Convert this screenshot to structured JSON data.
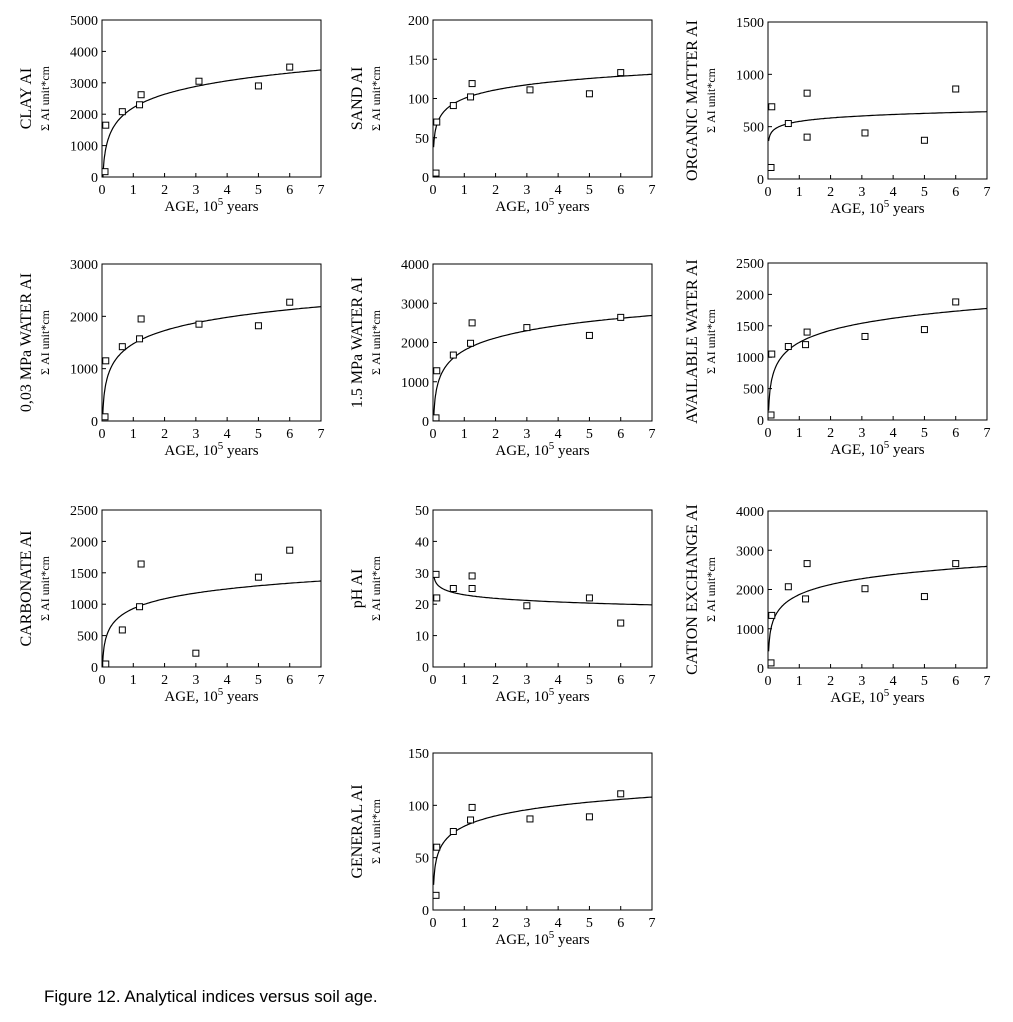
{
  "caption": "Figure 12. Analytical indices versus soil age.",
  "chart_data": [
    {
      "type": "scatter",
      "title": "CLAY AI",
      "ylabel": "Σ AI unit*cm",
      "xlabel": "AGE, 10^5 years",
      "xlim": [
        0,
        7
      ],
      "ylim": [
        0,
        5000
      ],
      "xticks": [
        0,
        1,
        2,
        3,
        4,
        5,
        6,
        7
      ],
      "yticks": [
        0,
        1000,
        2000,
        3000,
        4000,
        5000
      ],
      "points": [
        [
          0,
          170
        ],
        [
          0.12,
          1650
        ],
        [
          0.65,
          2080
        ],
        [
          1.2,
          2300
        ],
        [
          1.25,
          2620
        ],
        [
          3.1,
          3050
        ],
        [
          5,
          2900
        ],
        [
          6,
          3500
        ]
      ],
      "fit": {
        "a": 2207,
        "b": 1420,
        "c": 0.5
      }
    },
    {
      "type": "scatter",
      "title": "SAND AI",
      "ylabel": "Σ AI unit*cm",
      "xlabel": "AGE, 10^5 years",
      "xlim": [
        0,
        7
      ],
      "ylim": [
        0,
        200
      ],
      "xticks": [
        0,
        1,
        2,
        3,
        4,
        5,
        6,
        7
      ],
      "yticks": [
        0,
        50,
        100,
        150,
        200
      ],
      "points": [
        [
          0,
          5
        ],
        [
          0.12,
          70
        ],
        [
          0.65,
          91
        ],
        [
          1.2,
          102
        ],
        [
          1.25,
          119
        ],
        [
          3.1,
          111
        ],
        [
          5,
          106
        ],
        [
          6,
          133
        ]
      ],
      "fit": {
        "a": 100,
        "b": 36.5,
        "c": 0.5
      }
    },
    {
      "type": "scatter",
      "title": "ORGANIC MATTER AI",
      "ylabel": "Σ AI unit*cm",
      "xlabel": "AGE, 10^5 years",
      "xlim": [
        0,
        7
      ],
      "ylim": [
        0,
        1500
      ],
      "xticks": [
        0,
        1,
        2,
        3,
        4,
        5,
        6,
        7
      ],
      "yticks": [
        0,
        500,
        1000,
        1500
      ],
      "points": [
        [
          0,
          110
        ],
        [
          0.12,
          690
        ],
        [
          0.65,
          530
        ],
        [
          1.25,
          820
        ],
        [
          1.25,
          400
        ],
        [
          3.1,
          440
        ],
        [
          5,
          370
        ],
        [
          6,
          860
        ]
      ],
      "fit": {
        "a": 550,
        "b": 110,
        "c": 0.5
      }
    },
    {
      "type": "scatter",
      "title": "0,03 MPa WATER AI",
      "ylabel": "Σ AI unit*cm",
      "xlabel": "AGE, 10^5 years",
      "xlim": [
        0,
        7
      ],
      "ylim": [
        0,
        3000
      ],
      "xticks": [
        0,
        1,
        2,
        3,
        4,
        5,
        6,
        7
      ],
      "yticks": [
        0,
        1000,
        2000,
        3000
      ],
      "points": [
        [
          0,
          80
        ],
        [
          0.12,
          1150
        ],
        [
          0.65,
          1420
        ],
        [
          1.2,
          1570
        ],
        [
          1.25,
          1950
        ],
        [
          3.1,
          1850
        ],
        [
          5,
          1820
        ],
        [
          6,
          2270
        ]
      ],
      "fit": {
        "a": 1475,
        "b": 840,
        "c": 0.5
      }
    },
    {
      "type": "scatter",
      "title": "1.5 MPa WATER AI",
      "ylabel": "Σ AI unit*cm",
      "xlabel": "AGE, 10^5 years",
      "xlim": [
        0,
        7
      ],
      "ylim": [
        0,
        4000
      ],
      "xticks": [
        0,
        1,
        2,
        3,
        4,
        5,
        6,
        7
      ],
      "yticks": [
        0,
        1000,
        2000,
        3000,
        4000
      ],
      "points": [
        [
          0,
          80
        ],
        [
          0.12,
          1280
        ],
        [
          0.65,
          1680
        ],
        [
          1.2,
          1980
        ],
        [
          1.25,
          2500
        ],
        [
          3,
          2380
        ],
        [
          5,
          2180
        ],
        [
          6,
          2640
        ]
      ],
      "fit": {
        "a": 1800,
        "b": 1050,
        "c": 0.5
      }
    },
    {
      "type": "scatter",
      "title": "AVAILABLE WATER AI",
      "ylabel": "Σ AI unit*cm",
      "xlabel": "AGE, 10^5 years",
      "xlim": [
        0,
        7
      ],
      "ylim": [
        0,
        2500
      ],
      "xticks": [
        0,
        1,
        2,
        3,
        4,
        5,
        6,
        7
      ],
      "yticks": [
        0,
        500,
        1000,
        1500,
        2000,
        2500
      ],
      "points": [
        [
          0,
          80
        ],
        [
          0.12,
          1050
        ],
        [
          0.65,
          1170
        ],
        [
          1.2,
          1200
        ],
        [
          1.25,
          1400
        ],
        [
          3.1,
          1330
        ],
        [
          5,
          1440
        ],
        [
          6,
          1880
        ]
      ],
      "fit": {
        "a": 1235,
        "b": 640,
        "c": 0.5
      }
    },
    {
      "type": "scatter",
      "title": "CARBONATE AI",
      "ylabel": "Σ AI unit*cm",
      "xlabel": "AGE, 10^5 years",
      "xlim": [
        0,
        7
      ],
      "ylim": [
        0,
        2500
      ],
      "xticks": [
        0,
        1,
        2,
        3,
        4,
        5,
        6,
        7
      ],
      "yticks": [
        0,
        500,
        1000,
        1500,
        2000,
        2500
      ],
      "points": [
        [
          0,
          20
        ],
        [
          0.12,
          30
        ],
        [
          0.65,
          590
        ],
        [
          1.2,
          960
        ],
        [
          1.25,
          1640
        ],
        [
          3,
          220
        ],
        [
          5,
          1430
        ],
        [
          6,
          1860
        ]
      ],
      "fit": {
        "a": 930,
        "b": 520,
        "c": 0.5
      }
    },
    {
      "type": "scatter",
      "title": "pH AI",
      "ylabel": "Σ AI unit*cm",
      "xlabel": "AGE, 10^5 years",
      "xlim": [
        0,
        7
      ],
      "ylim": [
        0,
        50
      ],
      "xticks": [
        0,
        1,
        2,
        3,
        4,
        5,
        6,
        7
      ],
      "yticks": [
        0,
        10,
        20,
        30,
        40,
        50
      ],
      "points": [
        [
          0,
          29.5
        ],
        [
          0.12,
          22
        ],
        [
          0.65,
          25
        ],
        [
          1.25,
          29
        ],
        [
          1.25,
          25
        ],
        [
          3,
          19.5
        ],
        [
          5,
          22
        ],
        [
          6,
          14
        ]
      ],
      "fit": {
        "a": 23,
        "b": -3.8,
        "c": 0.5
      }
    },
    {
      "type": "scatter",
      "title": "CATION EXCHANGE AI",
      "ylabel": "Σ AI unit*cm",
      "xlabel": "AGE, 10^5 years",
      "xlim": [
        0,
        7
      ],
      "ylim": [
        0,
        4000
      ],
      "xticks": [
        0,
        1,
        2,
        3,
        4,
        5,
        6,
        7
      ],
      "yticks": [
        0,
        1000,
        2000,
        3000,
        4000
      ],
      "points": [
        [
          0,
          130
        ],
        [
          0.12,
          1340
        ],
        [
          0.65,
          2070
        ],
        [
          1.2,
          1760
        ],
        [
          1.25,
          2660
        ],
        [
          3.1,
          2020
        ],
        [
          5,
          1820
        ],
        [
          6,
          2660
        ]
      ],
      "fit": {
        "a": 1870,
        "b": 850,
        "c": 0.5
      }
    },
    {
      "type": "scatter",
      "title": "GENERAL AI",
      "ylabel": "Σ AI unit*cm",
      "xlabel": "AGE, 10^5 years",
      "xlim": [
        0,
        7
      ],
      "ylim": [
        0,
        150
      ],
      "xticks": [
        0,
        1,
        2,
        3,
        4,
        5,
        6,
        7
      ],
      "yticks": [
        0,
        50,
        100,
        150
      ],
      "points": [
        [
          0,
          14
        ],
        [
          0.12,
          60
        ],
        [
          0.65,
          75
        ],
        [
          1.2,
          86
        ],
        [
          1.25,
          98
        ],
        [
          3.1,
          87
        ],
        [
          5,
          89
        ],
        [
          6,
          111
        ]
      ],
      "fit": {
        "a": 80,
        "b": 33,
        "c": 0.5
      }
    }
  ]
}
